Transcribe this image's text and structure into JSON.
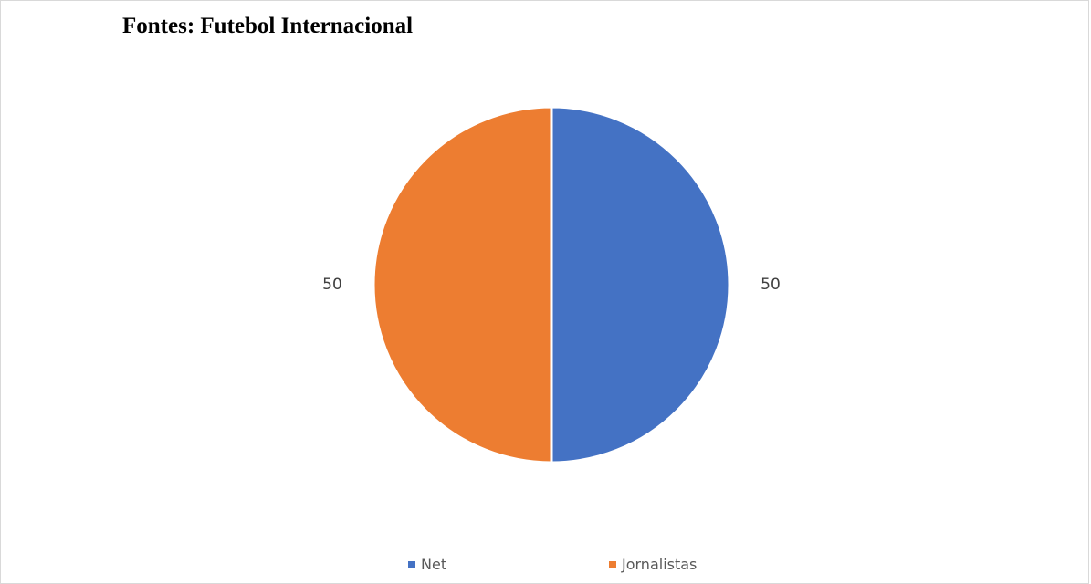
{
  "chart_data": {
    "type": "pie",
    "title": "Fontes: Futebol Internacional",
    "categories": [
      "Net",
      "Jornalistas"
    ],
    "values": [
      50,
      50
    ],
    "colors": [
      "#4472C4",
      "#ED7D31"
    ],
    "data_labels": [
      "50",
      "50"
    ],
    "legend": {
      "position": "bottom",
      "entries": [
        "Net",
        "Jornalistas"
      ]
    }
  }
}
